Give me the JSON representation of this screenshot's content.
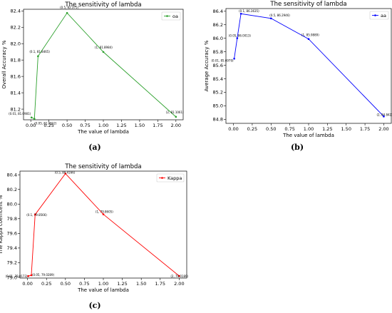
{
  "chart_data": [
    {
      "type": "line",
      "title": "The sensitivity of lambda",
      "xlabel": "The value of lambda",
      "ylabel": "Overall Accuracy %",
      "caption": "(a)",
      "color": "#2ca02c",
      "legend_placement": "top-right",
      "xlim": [
        -0.1,
        2.1
      ],
      "ylim": [
        81.07,
        82.42
      ],
      "xticks": [
        "0.00",
        "0.25",
        "0.50",
        "0.75",
        "1.00",
        "1.25",
        "1.50",
        "1.75",
        "2.00"
      ],
      "yticks": [
        "81.2",
        "81.4",
        "81.6",
        "81.8",
        "82.0",
        "82.2",
        "82.4"
      ],
      "series": [
        {
          "name": "oa",
          "x": [
            0.01,
            0.05,
            0.1,
            0.5,
            1,
            2
          ],
          "y": [
            81.0981,
            81.0812,
            81.8465,
            82.375,
            81.8984,
            81.1061
          ],
          "labels": [
            "(0.01, 81.0981)",
            "(0.05, 81.0812)",
            "(0.1, 81.8465)",
            "(0.5, 82.375)",
            "(1, 81.8984)",
            "(2, 81.1061)"
          ]
        }
      ]
    },
    {
      "type": "line",
      "title": "The sensitivity of lambda",
      "xlabel": "The value of lambda",
      "ylabel": "Average Accuracy %",
      "caption": "(b)",
      "color": "#0000ff",
      "legend_placement": "top-right",
      "xlim": [
        -0.1,
        2.1
      ],
      "ylim": [
        84.74,
        86.44
      ],
      "xticks": [
        "0.00",
        "0.25",
        "0.50",
        "0.75",
        "1.00",
        "1.25",
        "1.50",
        "1.75",
        "2.00"
      ],
      "yticks": [
        "84.8",
        "85.0",
        "85.2",
        "85.4",
        "85.6",
        "85.8",
        "86.0",
        "86.2",
        "86.4"
      ],
      "series": [
        {
          "name": "aa",
          "x": [
            0.01,
            0.05,
            0.1,
            0.5,
            1,
            2
          ],
          "y": [
            85.6979,
            86.0013,
            86.3635,
            86.2946,
            85.9889,
            84.8422
          ],
          "labels": [
            "(0.01, 85.6979)",
            "(0.05, 86.0013)",
            "(0.1, 86.3635)",
            "(0.5, 86.2946)",
            "(1, 85.9889)",
            "(2, 84.8422)"
          ]
        }
      ]
    },
    {
      "type": "line",
      "title": "The sensitivity of lambda",
      "xlabel": "The value of lambda",
      "ylabel": "The Kappa coefficent %",
      "caption": "(c)",
      "color": "#ff0000",
      "legend_placement": "top-right",
      "xlim": [
        -0.1,
        2.1
      ],
      "ylim": [
        78.99,
        80.45
      ],
      "xticks": [
        "0.00",
        "0.25",
        "0.50",
        "0.75",
        "1.00",
        "1.25",
        "1.50",
        "1.75",
        "2.00"
      ],
      "yticks": [
        "79.0",
        "79.2",
        "79.4",
        "79.6",
        "79.8",
        "80.0",
        "80.2",
        "80.4"
      ],
      "series": [
        {
          "name": "Kappa",
          "x": [
            0.01,
            0.05,
            0.1,
            0.5,
            1,
            2
          ],
          "y": [
            79.0173,
            79.0289,
            79.8566,
            80.4166,
            79.8605,
            79.0189
          ],
          "labels": [
            "(0.01, 79.0173)",
            "(0.05, 79.0289)",
            "(0.1, 79.8566)",
            "(0.5, 80.4166)",
            "(1, 79.8605)",
            "(2, 79.0189)"
          ]
        }
      ]
    }
  ]
}
